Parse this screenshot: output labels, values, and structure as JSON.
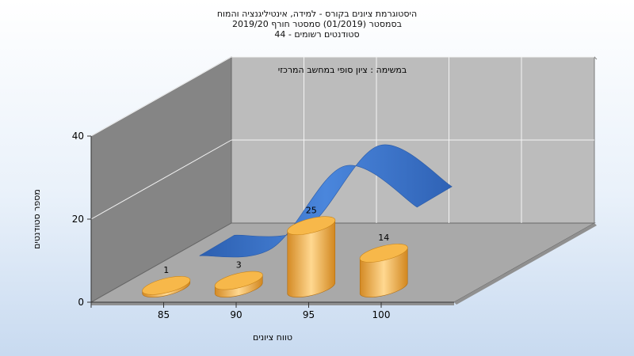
{
  "title": {
    "line1": "היסטוגרמת ציונים בקורס - למידה, אינטיליגנציה והמוח",
    "line2": "בסמסטר  (01/2019)  סמסטר חורף 2019/20",
    "line3": "סטודנטים רשומים - 44"
  },
  "chart_data": {
    "type": "bar",
    "title": "היסטוגרמת ציונים בקורס - למידה, אינטיליגנציה והמוח",
    "subtitle": "בסמסטר  (01/2019)  סמסטר חורף 2019/20 / סטודנטים רשומים - 44",
    "task_label": "במשימה : ציון סופי במחשב המרכזי",
    "xlabel": "טווח ציונים",
    "ylabel": "מספר סטודנטים",
    "categories": [
      "85",
      "90",
      "95",
      "100"
    ],
    "series": [
      {
        "values": [
          1,
          3,
          25,
          14
        ],
        "kind": "cylinder-bars",
        "color": "#f0a53a"
      },
      {
        "values": [
          1,
          3,
          25,
          14
        ],
        "kind": "smoothed-ribbon",
        "color": "#3b75c9"
      }
    ],
    "data_labels": [
      "1",
      "3",
      "25",
      "14"
    ],
    "yticks": [
      "0",
      "20",
      "40"
    ],
    "ylim": [
      0,
      40
    ],
    "grid": true,
    "view": "3d"
  }
}
